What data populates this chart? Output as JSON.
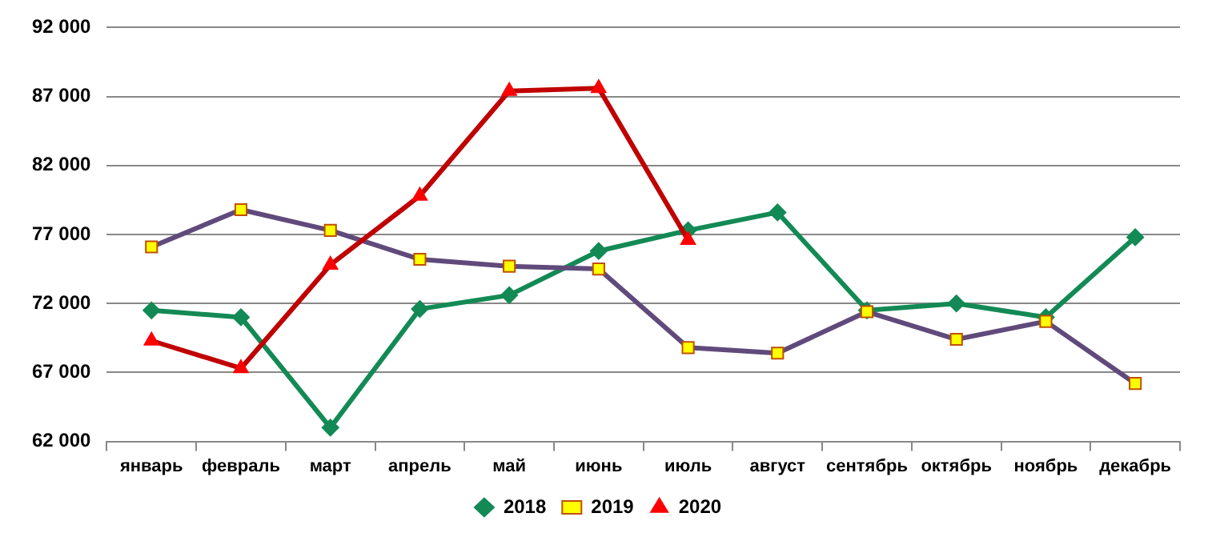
{
  "chart_data": {
    "type": "line",
    "categories": [
      "январь",
      "февраль",
      "март",
      "апрель",
      "май",
      "июнь",
      "июль",
      "август",
      "сентябрь",
      "октябрь",
      "ноябрь",
      "декабрь"
    ],
    "series": [
      {
        "name": "2018",
        "color": "#138a55",
        "marker": "diamond",
        "values": [
          71500,
          71000,
          63000,
          71600,
          72600,
          75800,
          77300,
          78600,
          71500,
          72000,
          71000,
          76800
        ]
      },
      {
        "name": "2019",
        "color": "#604a7b",
        "marker": "square",
        "values": [
          76100,
          78800,
          77300,
          75200,
          74700,
          74500,
          68800,
          68400,
          71400,
          69400,
          70700,
          66200
        ]
      },
      {
        "name": "2020",
        "color": "#c00000",
        "marker": "triangle",
        "values": [
          69300,
          67300,
          74800,
          79800,
          87400,
          87600,
          76600,
          null,
          null,
          null,
          null,
          null
        ]
      }
    ],
    "ylim": [
      62000,
      92000
    ],
    "yticks": [
      {
        "value": 62000,
        "label": "62 000"
      },
      {
        "value": 67000,
        "label": "67 000"
      },
      {
        "value": 72000,
        "label": "72 000"
      },
      {
        "value": 77000,
        "label": "77 000"
      },
      {
        "value": 82000,
        "label": "82 000"
      },
      {
        "value": 87000,
        "label": "87 000"
      },
      {
        "value": 92000,
        "label": "92 000"
      }
    ],
    "grid": "y",
    "legend": "bottom"
  }
}
